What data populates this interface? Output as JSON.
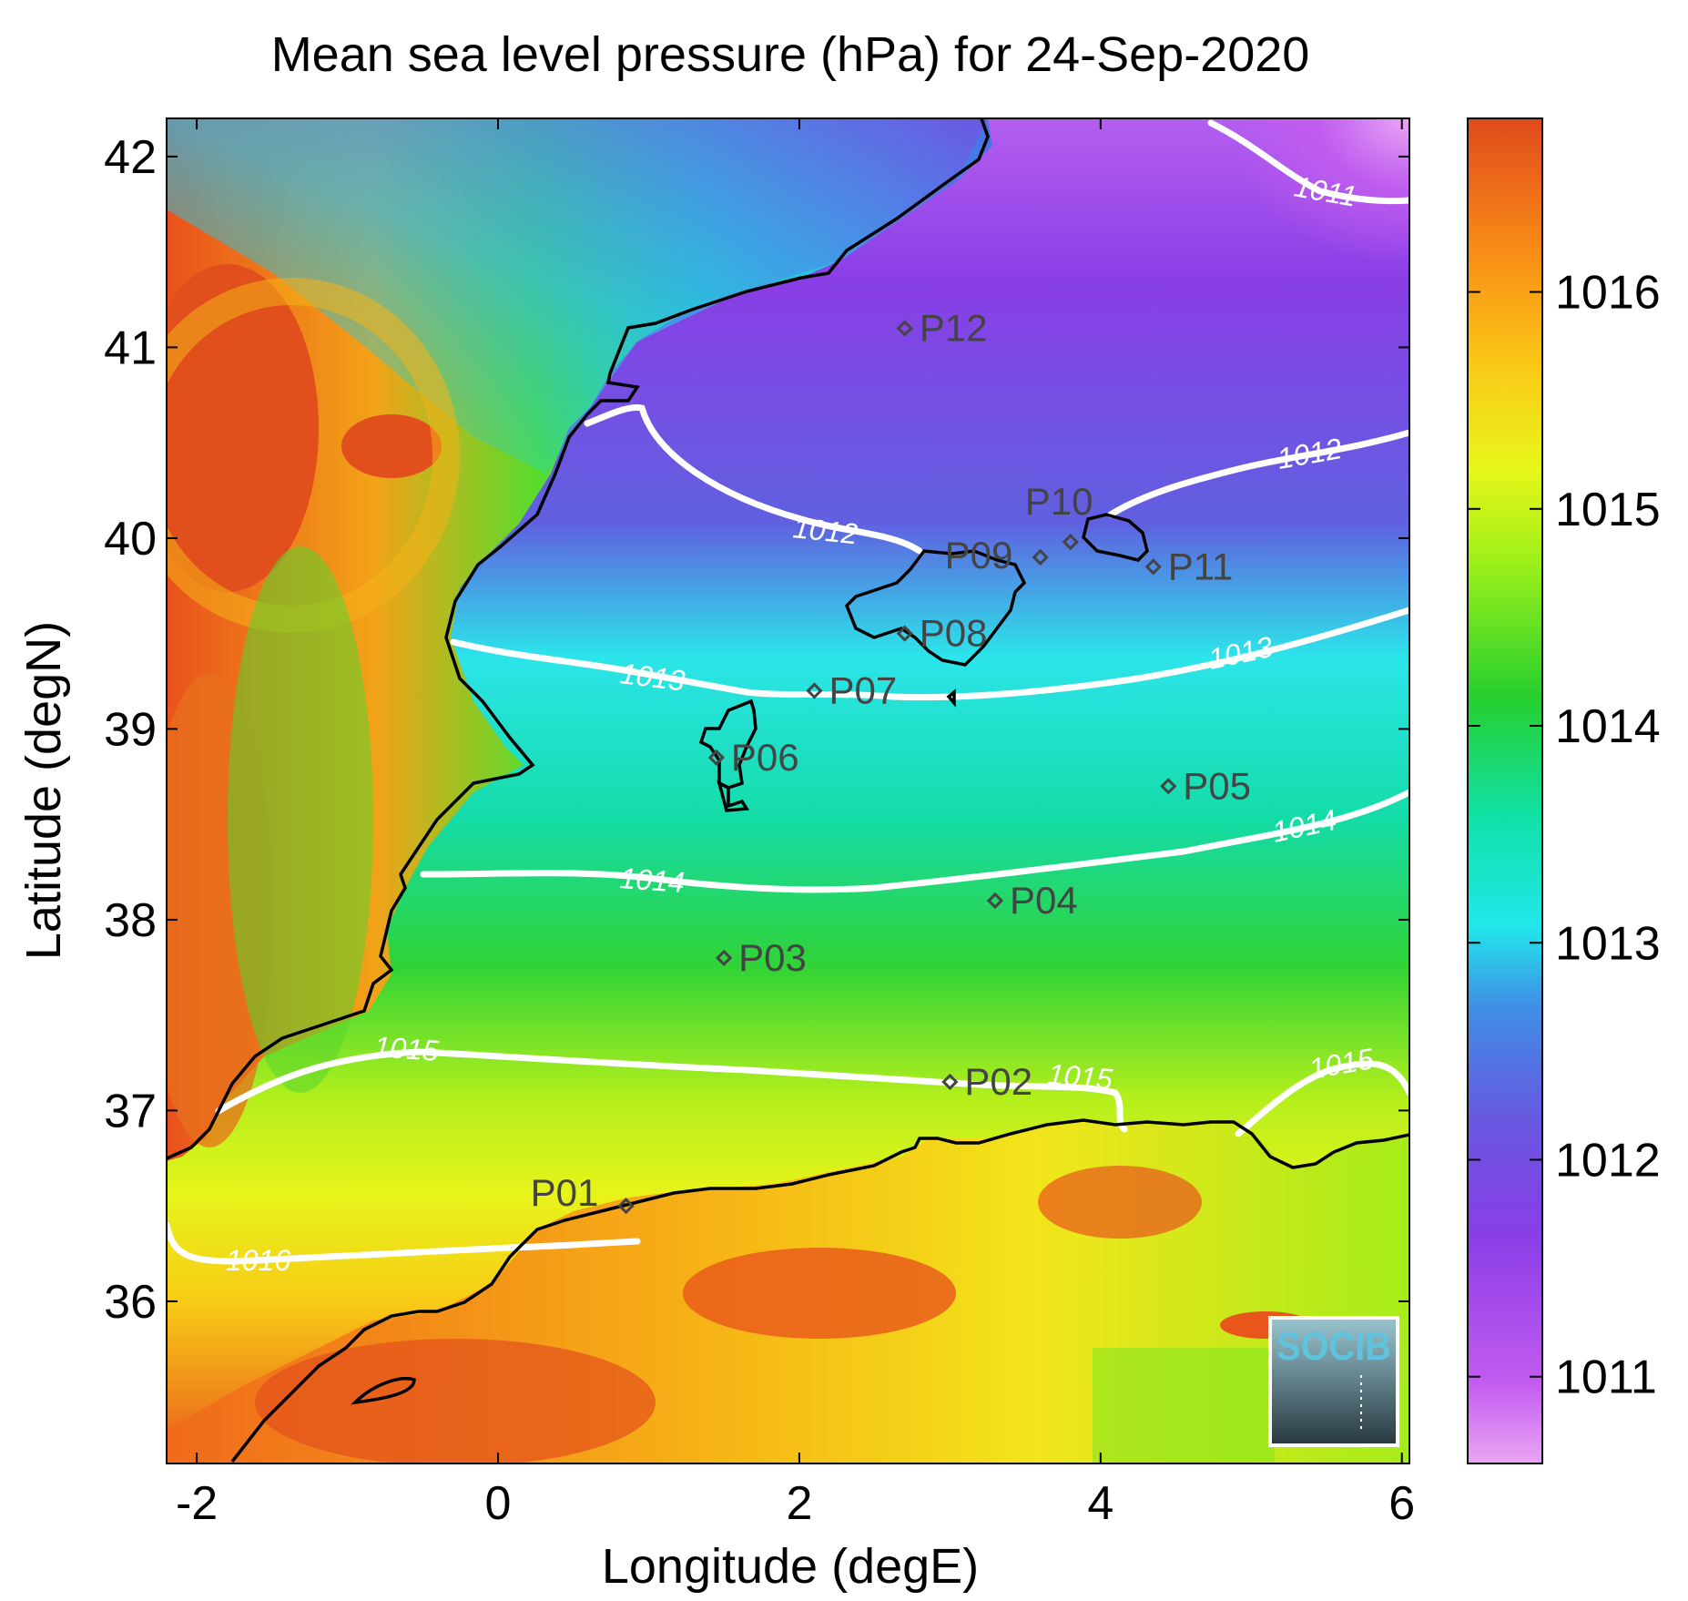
{
  "title": "Mean sea level pressure (hPa) for 24-Sep-2020",
  "xlabel": "Longitude (degE)",
  "ylabel": "Latitude (degN)",
  "x_ticks": [
    -2,
    0,
    2,
    4,
    6
  ],
  "y_ticks": [
    36,
    37,
    38,
    39,
    40,
    41,
    42
  ],
  "colorbar": {
    "range": [
      1010.6,
      1016.8
    ],
    "ticks": [
      1011,
      1012,
      1013,
      1014,
      1015,
      1016
    ]
  },
  "chart_data": {
    "type": "heatmap",
    "title": "Mean sea level pressure (hPa) for 24-Sep-2020",
    "xlabel": "Longitude (degE)",
    "ylabel": "Latitude (degN)",
    "xlim": [
      -2.2,
      6.05
    ],
    "ylim": [
      35.15,
      42.2
    ],
    "contour_levels": [
      {
        "value": 1011,
        "label": "1011"
      },
      {
        "value": 1012,
        "label": "1012"
      },
      {
        "value": 1013,
        "label": "1013"
      },
      {
        "value": 1014,
        "label": "1014"
      },
      {
        "value": 1015,
        "label": "1015"
      },
      {
        "value": 1016,
        "label": "1016"
      }
    ],
    "stations": [
      {
        "name": "P01",
        "lon": 0.85,
        "lat": 36.5
      },
      {
        "name": "P02",
        "lon": 3.0,
        "lat": 37.15
      },
      {
        "name": "P03",
        "lon": 1.5,
        "lat": 37.8
      },
      {
        "name": "P04",
        "lon": 3.3,
        "lat": 38.1
      },
      {
        "name": "P05",
        "lon": 4.45,
        "lat": 38.7
      },
      {
        "name": "P06",
        "lon": 1.45,
        "lat": 38.85
      },
      {
        "name": "P07",
        "lon": 2.1,
        "lat": 39.2
      },
      {
        "name": "P08",
        "lon": 2.7,
        "lat": 39.5
      },
      {
        "name": "P09",
        "lon": 3.6,
        "lat": 39.9
      },
      {
        "name": "P10",
        "lon": 3.8,
        "lat": 39.98
      },
      {
        "name": "P11",
        "lon": 4.35,
        "lat": 39.85
      },
      {
        "name": "P12",
        "lon": 2.7,
        "lat": 41.1
      }
    ]
  },
  "logo": {
    "text": "SOCIB"
  },
  "colors": {
    "contour": "#ffffff",
    "coastline": "#000000",
    "station": "#444444"
  }
}
